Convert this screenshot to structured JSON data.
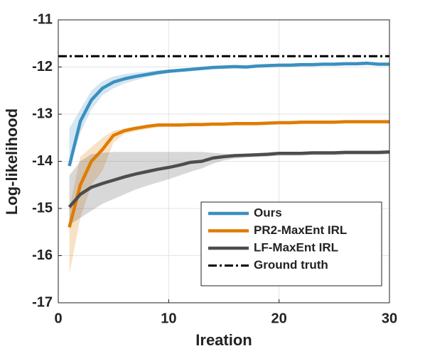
{
  "chart_data": {
    "type": "line",
    "xlabel": "Ireation",
    "ylabel": "Log-likelihood",
    "xlim": [
      0,
      30
    ],
    "ylim": [
      -17,
      -11
    ],
    "xticks": [
      0,
      10,
      20,
      30
    ],
    "yticks": [
      -17,
      -16,
      -15,
      -14,
      -13,
      -12,
      -11
    ],
    "grid": true,
    "legend": "lower right",
    "x": [
      1,
      2,
      3,
      4,
      5,
      6,
      7,
      8,
      9,
      10,
      11,
      12,
      13,
      14,
      15,
      16,
      17,
      18,
      19,
      20,
      21,
      22,
      23,
      24,
      25,
      26,
      27,
      28,
      29,
      30
    ],
    "series": [
      {
        "name": "Ours",
        "color": "#3a8fc0",
        "values": [
          -14.1,
          -13.15,
          -12.7,
          -12.45,
          -12.32,
          -12.25,
          -12.2,
          -12.16,
          -12.12,
          -12.09,
          -12.07,
          -12.05,
          -12.03,
          -12.01,
          -12.0,
          -11.99,
          -12.0,
          -11.98,
          -11.97,
          -11.96,
          -11.96,
          -11.95,
          -11.95,
          -11.94,
          -11.94,
          -11.93,
          -11.93,
          -11.92,
          -11.94,
          -11.94
        ],
        "upper": [
          -13.3,
          -12.9,
          -12.5,
          -12.3,
          -12.2,
          -12.15,
          -12.12,
          -12.1,
          -12.07,
          -12.05,
          -12.04,
          -12.02,
          -12.0,
          -11.98,
          -11.97,
          -11.96,
          -11.97,
          -11.95,
          -11.94,
          -11.93,
          -11.93,
          -11.92,
          -11.92,
          -11.91,
          -11.91,
          -11.9,
          -11.9,
          -11.89,
          -11.91,
          -11.91
        ],
        "lower": [
          -14.1,
          -13.4,
          -12.9,
          -12.6,
          -12.45,
          -12.35,
          -12.28,
          -12.22,
          -12.17,
          -12.13,
          -12.11,
          -12.09,
          -12.07,
          -12.05,
          -12.04,
          -12.03,
          -12.04,
          -12.02,
          -12.01,
          -12.0,
          -12.0,
          -11.99,
          -11.99,
          -11.98,
          -11.98,
          -11.97,
          -11.97,
          -11.96,
          -11.98,
          -11.98
        ]
      },
      {
        "name": "PR2-MaxEnt IRL",
        "color": "#e07b00",
        "values": [
          -15.4,
          -14.5,
          -14.0,
          -13.75,
          -13.45,
          -13.35,
          -13.3,
          -13.26,
          -13.23,
          -13.23,
          -13.23,
          -13.22,
          -13.22,
          -13.21,
          -13.21,
          -13.2,
          -13.2,
          -13.2,
          -13.19,
          -13.18,
          -13.18,
          -13.17,
          -13.17,
          -13.17,
          -13.17,
          -13.16,
          -13.16,
          -13.16,
          -13.16,
          -13.16
        ],
        "upper": [
          -15.0,
          -13.9,
          -13.7,
          -13.5,
          -13.35,
          -13.3,
          -13.26,
          -13.23,
          -13.2,
          -13.2,
          -13.2,
          -13.19,
          -13.19,
          -13.18,
          -13.18,
          -13.17,
          -13.17,
          -13.17,
          -13.16,
          -13.15,
          -13.15,
          -13.14,
          -13.14,
          -13.14,
          -13.14,
          -13.13,
          -13.13,
          -13.13,
          -13.13,
          -13.13
        ],
        "lower": [
          -16.4,
          -15.2,
          -14.5,
          -14.2,
          -13.6,
          -13.42,
          -13.36,
          -13.32,
          -13.28,
          -13.27,
          -13.27,
          -13.26,
          -13.26,
          -13.25,
          -13.25,
          -13.24,
          -13.24,
          -13.24,
          -13.23,
          -13.22,
          -13.22,
          -13.21,
          -13.21,
          -13.21,
          -13.21,
          -13.2,
          -13.2,
          -13.2,
          -13.2,
          -13.2
        ]
      },
      {
        "name": "LF-MaxEnt IRL",
        "color": "#4d4d4d",
        "values": [
          -14.97,
          -14.7,
          -14.55,
          -14.47,
          -14.4,
          -14.33,
          -14.27,
          -14.22,
          -14.17,
          -14.13,
          -14.08,
          -14.02,
          -14.0,
          -13.93,
          -13.9,
          -13.88,
          -13.87,
          -13.86,
          -13.85,
          -13.83,
          -13.83,
          -13.83,
          -13.82,
          -13.82,
          -13.82,
          -13.81,
          -13.81,
          -13.81,
          -13.81,
          -13.8
        ],
        "upper": [
          -14.3,
          -14.0,
          -13.85,
          -13.82,
          -13.8,
          -13.8,
          -13.8,
          -13.8,
          -13.8,
          -13.8,
          -13.8,
          -13.8,
          -13.8,
          -13.82,
          -13.84,
          -13.84,
          -13.84,
          -13.83,
          -13.82,
          -13.8,
          -13.8,
          -13.8,
          -13.79,
          -13.79,
          -13.79,
          -13.78,
          -13.78,
          -13.78,
          -13.78,
          -13.77
        ],
        "lower": [
          -15.35,
          -15.2,
          -15.05,
          -14.9,
          -14.8,
          -14.7,
          -14.6,
          -14.52,
          -14.45,
          -14.38,
          -14.3,
          -14.22,
          -14.15,
          -14.05,
          -13.98,
          -13.94,
          -13.92,
          -13.91,
          -13.9,
          -13.88,
          -13.88,
          -13.88,
          -13.87,
          -13.87,
          -13.87,
          -13.86,
          -13.86,
          -13.86,
          -13.86,
          -13.85
        ]
      }
    ],
    "reference": {
      "name": "Ground truth",
      "value": -11.77,
      "color": "#000000"
    }
  }
}
